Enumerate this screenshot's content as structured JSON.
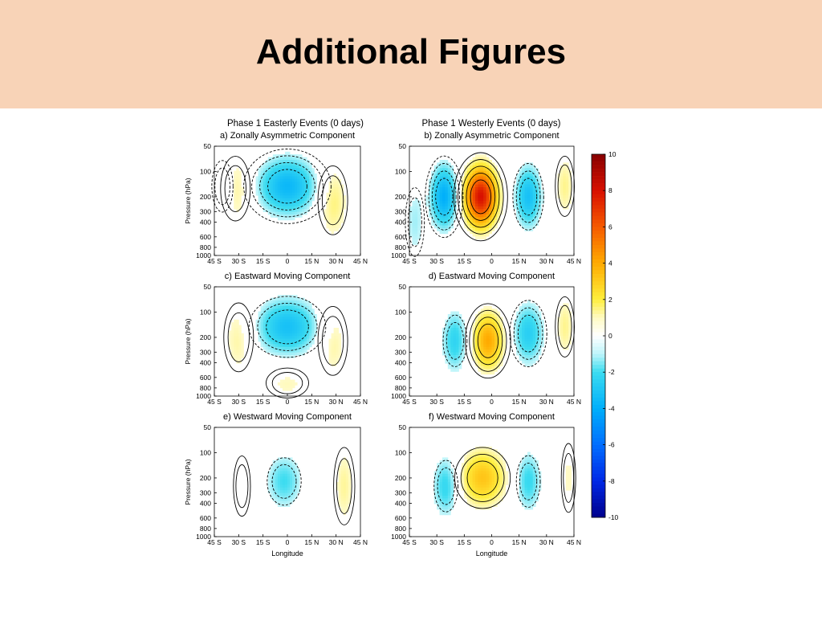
{
  "slide": {
    "title": "Additional Figures"
  },
  "figure": {
    "column_titles": [
      "Phase 1 Easterly Events (0 days)",
      "Phase 1 Westerly Events (0 days)"
    ],
    "x_axis_label": "Longitude",
    "y_axis_label": "Pressure (hPa)"
  },
  "colors": {
    "band": "#f8d3b7",
    "positive": "#d7191c",
    "negative": "#2b83ba",
    "contour": "#000000"
  },
  "chart_data": [
    {
      "type": "heatmap",
      "panel": "a",
      "title": "a) Zonally Asymmetric Component",
      "x_ticks": [
        "45 S",
        "30 S",
        "15 S",
        "0",
        "15 N",
        "30 N",
        "45 N"
      ],
      "x_values": [
        -45,
        -30,
        -15,
        0,
        15,
        30,
        45
      ],
      "y_ticks": [
        "50",
        "100",
        "200",
        "300",
        "400",
        "600",
        "800",
        "1000"
      ],
      "y_values": [
        50,
        100,
        200,
        300,
        400,
        600,
        800,
        1000
      ],
      "ylabel": "Pressure (hPa)",
      "xlabel": "",
      "blobs": [
        {
          "lon": 0,
          "p": 150,
          "amp": -3.6,
          "slon": 13,
          "sp": 0.55
        },
        {
          "lon": -32,
          "p": 160,
          "amp": 1.6,
          "slon": 7,
          "sp": 0.75
        },
        {
          "lon": 28,
          "p": 220,
          "amp": 1.7,
          "slon": 7,
          "sp": 0.8
        },
        {
          "lon": -40,
          "p": 150,
          "amp": -1.2,
          "slon": 5,
          "sp": 0.6
        }
      ]
    },
    {
      "type": "heatmap",
      "panel": "b",
      "title": "b) Zonally Asymmetric Component",
      "x_ticks": [
        "45 S",
        "30 S",
        "15 S",
        "0",
        "15 N",
        "30 N",
        "45 N"
      ],
      "x_values": [
        -45,
        -30,
        -15,
        0,
        15,
        30,
        45
      ],
      "y_ticks": [
        "50",
        "100",
        "200",
        "300",
        "400",
        "600",
        "800",
        "1000"
      ],
      "y_values": [
        50,
        100,
        200,
        300,
        400,
        600,
        800,
        1000
      ],
      "ylabel": "",
      "xlabel": "",
      "blobs": [
        {
          "lon": -6,
          "p": 200,
          "amp": 8.0,
          "slon": 6,
          "sp": 0.55
        },
        {
          "lon": -26,
          "p": 200,
          "amp": -4.0,
          "slon": 5,
          "sp": 0.6
        },
        {
          "lon": 20,
          "p": 200,
          "amp": -3.2,
          "slon": 5,
          "sp": 0.6
        },
        {
          "lon": 40,
          "p": 150,
          "amp": 1.4,
          "slon": 4,
          "sp": 0.7
        },
        {
          "lon": -42,
          "p": 400,
          "amp": -1.2,
          "slon": 4,
          "sp": 0.8
        }
      ]
    },
    {
      "type": "heatmap",
      "panel": "c",
      "title": "c) Eastward Moving Component",
      "x_ticks": [
        "45 S",
        "30 S",
        "15 S",
        "0",
        "15 N",
        "30 N",
        "45 N"
      ],
      "x_values": [
        -45,
        -30,
        -15,
        0,
        15,
        30,
        45
      ],
      "y_ticks": [
        "50",
        "100",
        "200",
        "300",
        "400",
        "600",
        "800",
        "1000"
      ],
      "y_values": [
        50,
        100,
        200,
        300,
        400,
        600,
        800,
        1000
      ],
      "ylabel": "Pressure (hPa)",
      "xlabel": "",
      "blobs": [
        {
          "lon": 0,
          "p": 150,
          "amp": -3.2,
          "slon": 14,
          "sp": 0.55
        },
        {
          "lon": -30,
          "p": 200,
          "amp": 1.4,
          "slon": 7,
          "sp": 0.8
        },
        {
          "lon": 28,
          "p": 220,
          "amp": 1.4,
          "slon": 7,
          "sp": 0.8
        },
        {
          "lon": 0,
          "p": 700,
          "amp": 1.1,
          "slon": 10,
          "sp": 0.35
        }
      ]
    },
    {
      "type": "heatmap",
      "panel": "d",
      "title": "d) Eastward Moving Component",
      "x_ticks": [
        "45 S",
        "30 S",
        "15 S",
        "0",
        "15 N",
        "30 N",
        "45 N"
      ],
      "x_values": [
        -45,
        -30,
        -15,
        0,
        15,
        30,
        45
      ],
      "y_ticks": [
        "50",
        "100",
        "200",
        "300",
        "400",
        "600",
        "800",
        "1000"
      ],
      "y_values": [
        50,
        100,
        200,
        300,
        400,
        600,
        800,
        1000
      ],
      "ylabel": "",
      "xlabel": "",
      "blobs": [
        {
          "lon": -2,
          "p": 220,
          "amp": 4.0,
          "slon": 6,
          "sp": 0.55
        },
        {
          "lon": -20,
          "p": 220,
          "amp": -2.4,
          "slon": 5,
          "sp": 0.6
        },
        {
          "lon": 20,
          "p": 180,
          "amp": -2.6,
          "slon": 6,
          "sp": 0.6
        },
        {
          "lon": 40,
          "p": 150,
          "amp": 1.4,
          "slon": 4,
          "sp": 0.7
        }
      ]
    },
    {
      "type": "heatmap",
      "panel": "e",
      "title": "e) Westward Moving Component",
      "x_ticks": [
        "45 S",
        "30 S",
        "15 S",
        "0",
        "15 N",
        "30 N",
        "45 N"
      ],
      "x_values": [
        -45,
        -30,
        -15,
        0,
        15,
        30,
        45
      ],
      "y_ticks": [
        "50",
        "100",
        "200",
        "300",
        "400",
        "600",
        "800",
        "1000"
      ],
      "y_values": [
        50,
        100,
        200,
        300,
        400,
        600,
        800,
        1000
      ],
      "ylabel": "Pressure (hPa)",
      "xlabel": "Longitude",
      "blobs": [
        {
          "lon": -2,
          "p": 220,
          "amp": -2.0,
          "slon": 8,
          "sp": 0.55
        },
        {
          "lon": 35,
          "p": 250,
          "amp": 1.3,
          "slon": 5,
          "sp": 0.9
        },
        {
          "lon": -28,
          "p": 250,
          "amp": 0.9,
          "slon": 4,
          "sp": 0.7
        }
      ]
    },
    {
      "type": "heatmap",
      "panel": "f",
      "title": "f) Westward Moving Component",
      "x_ticks": [
        "45 S",
        "30 S",
        "15 S",
        "0",
        "15 N",
        "30 N",
        "45 N"
      ],
      "x_values": [
        -45,
        -30,
        -15,
        0,
        15,
        30,
        45
      ],
      "y_ticks": [
        "50",
        "100",
        "200",
        "300",
        "400",
        "600",
        "800",
        "1000"
      ],
      "y_values": [
        50,
        100,
        200,
        300,
        400,
        600,
        800,
        1000
      ],
      "ylabel": "",
      "xlabel": "Longitude",
      "blobs": [
        {
          "lon": -5,
          "p": 200,
          "amp": 3.2,
          "slon": 9,
          "sp": 0.55
        },
        {
          "lon": -25,
          "p": 250,
          "amp": -2.4,
          "slon": 5,
          "sp": 0.6
        },
        {
          "lon": 20,
          "p": 220,
          "amp": -2.2,
          "slon": 5,
          "sp": 0.6
        },
        {
          "lon": 42,
          "p": 200,
          "amp": 1.0,
          "slon": 3,
          "sp": 0.8
        }
      ]
    },
    {
      "type": "colorbar",
      "ticks": [
        "10",
        "8",
        "6",
        "4",
        "2",
        "0",
        "-2",
        "-4",
        "-6",
        "-8",
        "-10"
      ],
      "values": [
        10,
        8,
        6,
        4,
        2,
        0,
        -2,
        -4,
        -6,
        -8,
        -10
      ],
      "range": [
        -10,
        10
      ]
    }
  ]
}
